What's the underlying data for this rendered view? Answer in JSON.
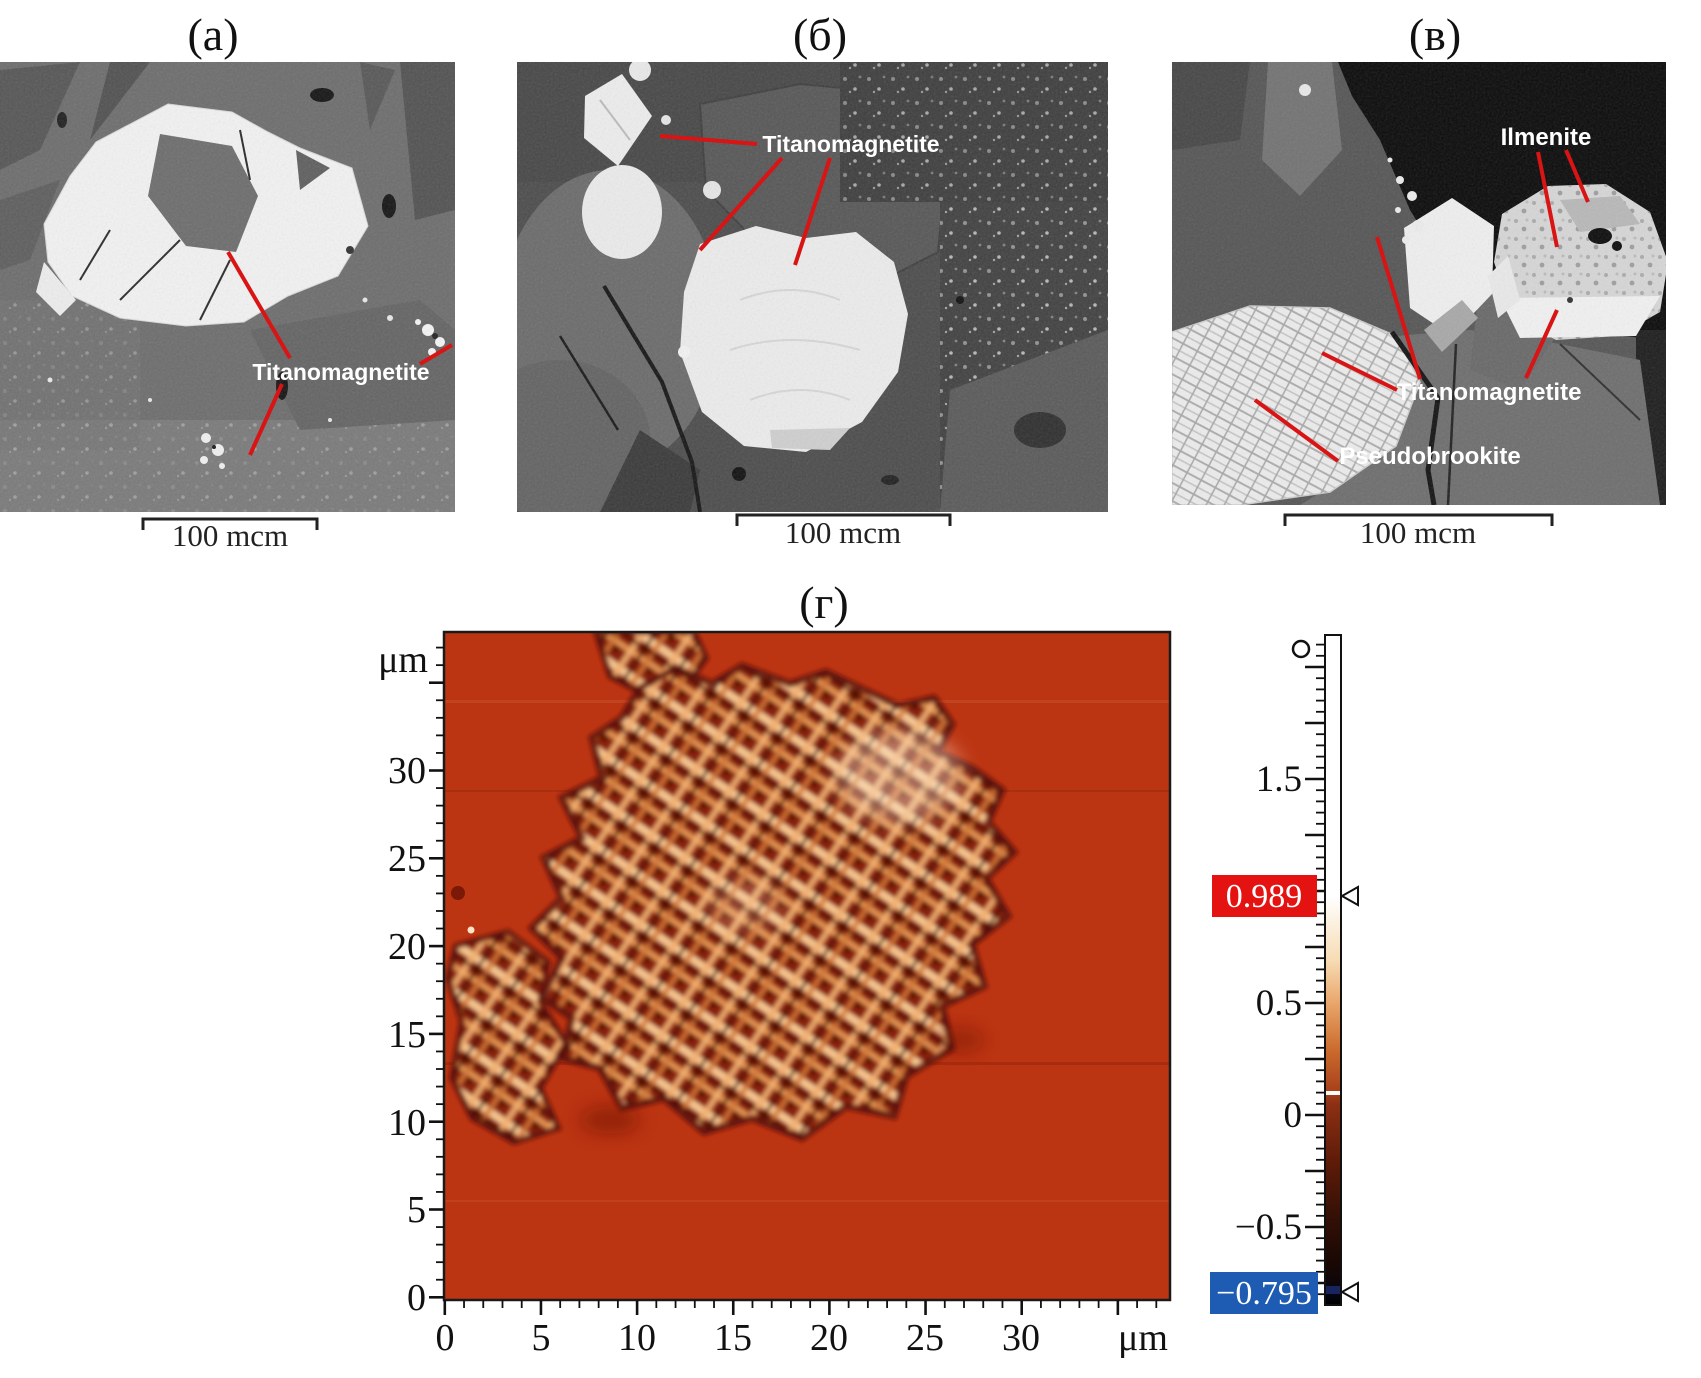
{
  "colors": {
    "annotation_line": "#d81414",
    "annotation_text": "#ffffff",
    "max_box": "#e51212",
    "min_box": "#1e5cb4",
    "afm_base": "#bc3512"
  },
  "panel_a": {
    "label": "(а)",
    "annotation": "Titanomagnetite",
    "scale_label": "100 mcm"
  },
  "panel_b": {
    "label": "(б)",
    "annotation": "Titanomagnetite",
    "scale_label": "100 mcm"
  },
  "panel_v": {
    "label": "(в)",
    "ilmenite_label": "Ilmenite",
    "titanomagnetite_label": "Titanomagnetite",
    "pseudobrookite_label": "Pseudobrookite",
    "scale_label": "100 mcm"
  },
  "panel_g": {
    "label": "(г)",
    "x_axis_unit": "μm",
    "y_axis_unit": "μm",
    "x_tick_labels": [
      "0",
      "5",
      "10",
      "15",
      "20",
      "25",
      "30"
    ],
    "y_tick_labels": [
      "30",
      "25",
      "20",
      "15",
      "10",
      "5",
      "0"
    ],
    "colorbar": {
      "tick_labels": [
        "1.5",
        "0.5",
        "0",
        "−0.5"
      ],
      "max_value": "0.989",
      "min_value": "−0.795"
    }
  },
  "chart_data": {
    "type": "heatmap",
    "title": "(г) magnetic force microscopy scan of titanomagnetite grain",
    "x_unit": "μm",
    "y_unit": "μm",
    "x_range": [
      0,
      38
    ],
    "y_range": [
      0,
      38
    ],
    "x_ticks": [
      0,
      5,
      10,
      15,
      20,
      25,
      30
    ],
    "y_ticks": [
      0,
      5,
      10,
      15,
      20,
      25,
      30
    ],
    "colorbar": {
      "visible_tick_labels": [
        1.5,
        0.5,
        0,
        -0.5
      ],
      "max_marker_value": 0.989,
      "min_marker_value": -0.795,
      "max_marker_color": "#e51212",
      "min_marker_color": "#1e5cb4"
    }
  }
}
